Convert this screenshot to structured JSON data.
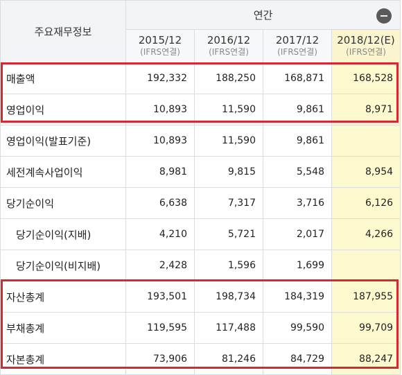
{
  "header": {
    "label_column": "주요재무정보",
    "annual": "연간",
    "collapse_symbol": "−",
    "years": [
      {
        "year": "2015/12",
        "basis": "(IFRS연결)"
      },
      {
        "year": "2016/12",
        "basis": "(IFRS연결)"
      },
      {
        "year": "2017/12",
        "basis": "(IFRS연결)"
      },
      {
        "year": "2018/12(E)",
        "basis": "(IFRS연결)"
      }
    ]
  },
  "rows": [
    {
      "label": "매출액",
      "values": [
        "192,332",
        "188,250",
        "168,871",
        "168,528"
      ]
    },
    {
      "label": "영업이익",
      "values": [
        "10,893",
        "11,590",
        "9,861",
        "8,971"
      ]
    },
    {
      "label": "영업이익(발표기준)",
      "values": [
        "10,893",
        "11,590",
        "9,861",
        ""
      ]
    },
    {
      "label": "세전계속사업이익",
      "values": [
        "8,981",
        "9,815",
        "5,548",
        "8,954"
      ]
    },
    {
      "label": "당기순이익",
      "values": [
        "6,638",
        "7,317",
        "3,716",
        "6,126"
      ]
    },
    {
      "label": "당기순이익(지배)",
      "values": [
        "4,210",
        "5,721",
        "2,017",
        "4,266"
      ]
    },
    {
      "label": "당기순이익(비지배)",
      "values": [
        "2,428",
        "1,596",
        "1,699",
        ""
      ]
    },
    {
      "label": "자산총계",
      "values": [
        "193,501",
        "198,734",
        "184,319",
        "187,955"
      ]
    },
    {
      "label": "부채총계",
      "values": [
        "119,595",
        "117,488",
        "99,590",
        "99,709"
      ]
    },
    {
      "label": "자본총계",
      "values": [
        "73,906",
        "81,246",
        "84,729",
        "88,247"
      ]
    }
  ],
  "colors": {
    "highlight_border": "#d8282f",
    "estimate_bg": "#fdf9cf"
  }
}
